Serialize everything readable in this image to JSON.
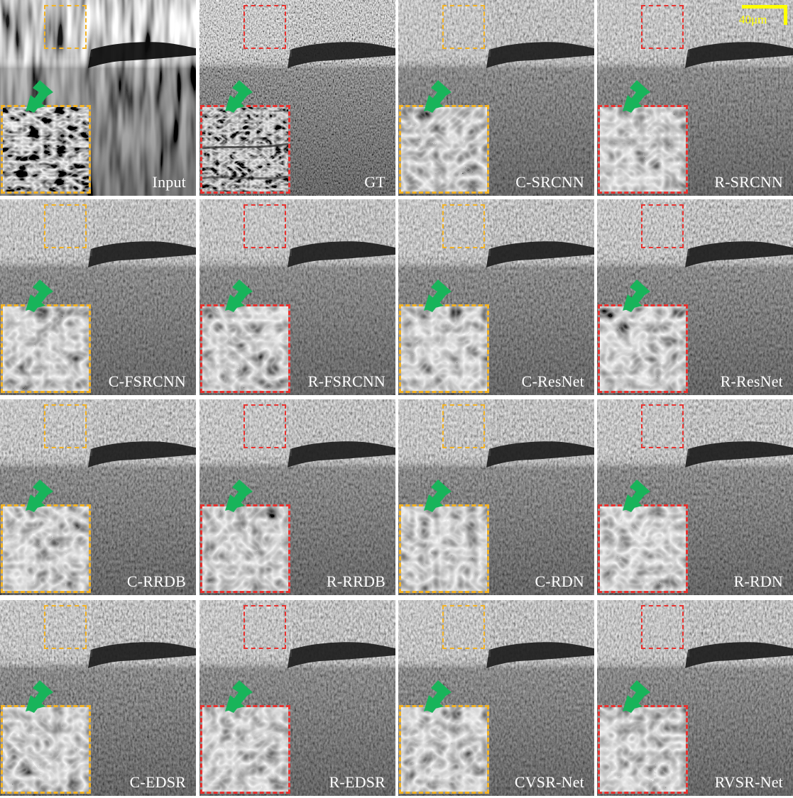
{
  "figure": {
    "panels": [
      {
        "label": "Input",
        "roi_color": "#f4b324"
      },
      {
        "label": "GT",
        "roi_color": "#e8322f"
      },
      {
        "label": "C-SRCNN",
        "roi_color": "#f4b324"
      },
      {
        "label": "R-SRCNN",
        "roi_color": "#e8322f"
      },
      {
        "label": "C-FSRCNN",
        "roi_color": "#f4b324"
      },
      {
        "label": "R-FSRCNN",
        "roi_color": "#e8322f"
      },
      {
        "label": "C-ResNet",
        "roi_color": "#f4b324"
      },
      {
        "label": "R-ResNet",
        "roi_color": "#e8322f"
      },
      {
        "label": "C-RRDB",
        "roi_color": "#f4b324"
      },
      {
        "label": "R-RRDB",
        "roi_color": "#e8322f"
      },
      {
        "label": "C-RDN",
        "roi_color": "#f4b324"
      },
      {
        "label": "R-RDN",
        "roi_color": "#e8322f"
      },
      {
        "label": "C-EDSR",
        "roi_color": "#f4b324"
      },
      {
        "label": "R-EDSR",
        "roi_color": "#e8322f"
      },
      {
        "label": "CVSR-Net",
        "roi_color": "#f4b324"
      },
      {
        "label": "RVSR-Net",
        "roi_color": "#e8322f"
      }
    ],
    "scale_bar": {
      "text": "40μm",
      "color": "#ffff00"
    },
    "arrow_color": "#18b45a"
  }
}
